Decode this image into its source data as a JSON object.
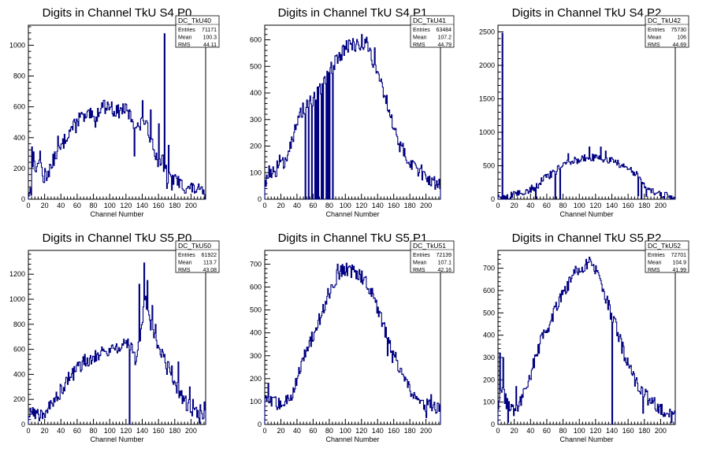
{
  "chart_data": [
    {
      "type": "histogram",
      "title": "Digits in Channel TkU S4 P0",
      "xlabel": "Channel Number",
      "xlim": [
        0,
        218
      ],
      "ylim": [
        0,
        1130
      ],
      "xticks": [
        0,
        20,
        40,
        60,
        80,
        100,
        120,
        140,
        160,
        180,
        200
      ],
      "yticks": [
        200,
        400,
        600,
        800,
        1000
      ],
      "stats": {
        "name": "DC_TkU40",
        "entries": "71171",
        "mean": "100.3",
        "rms": "44.11"
      },
      "anchors": [
        [
          0,
          40
        ],
        [
          4,
          60
        ],
        [
          6,
          280
        ],
        [
          10,
          180
        ],
        [
          14,
          290
        ],
        [
          18,
          130
        ],
        [
          22,
          150
        ],
        [
          28,
          220
        ],
        [
          34,
          290
        ],
        [
          40,
          330
        ],
        [
          46,
          400
        ],
        [
          52,
          460
        ],
        [
          58,
          470
        ],
        [
          64,
          540
        ],
        [
          70,
          520
        ],
        [
          76,
          550
        ],
        [
          82,
          500
        ],
        [
          88,
          600
        ],
        [
          94,
          600
        ],
        [
          100,
          610
        ],
        [
          106,
          570
        ],
        [
          112,
          570
        ],
        [
          118,
          590
        ],
        [
          124,
          550
        ],
        [
          130,
          500
        ],
        [
          136,
          460
        ],
        [
          142,
          520
        ],
        [
          148,
          430
        ],
        [
          154,
          360
        ],
        [
          158,
          250
        ],
        [
          162,
          250
        ],
        [
          166,
          250
        ],
        [
          172,
          130
        ],
        [
          178,
          130
        ],
        [
          184,
          110
        ],
        [
          190,
          90
        ],
        [
          196,
          70
        ],
        [
          202,
          70
        ],
        [
          208,
          60
        ],
        [
          214,
          40
        ],
        [
          218,
          30
        ]
      ],
      "spikes": [
        [
          4,
          340
        ],
        [
          20,
          200
        ],
        [
          28,
          200
        ],
        [
          36,
          410
        ],
        [
          50,
          450
        ],
        [
          56,
          520
        ],
        [
          62,
          560
        ],
        [
          92,
          640
        ],
        [
          130,
          280
        ],
        [
          140,
          640
        ],
        [
          150,
          580
        ],
        [
          160,
          490
        ],
        [
          166,
          180
        ],
        [
          167,
          1075
        ],
        [
          170,
          70
        ],
        [
          172,
          350
        ],
        [
          176,
          60
        ],
        [
          180,
          160
        ]
      ],
      "noise": 45
    },
    {
      "type": "histogram",
      "title": "Digits in Channel TkU S4 P1",
      "xlabel": "Channel Number",
      "xlim": [
        0,
        218
      ],
      "ylim": [
        0,
        655
      ],
      "xticks": [
        0,
        20,
        40,
        60,
        80,
        100,
        120,
        140,
        160,
        180,
        200
      ],
      "yticks": [
        100,
        200,
        300,
        400,
        500,
        600
      ],
      "stats": {
        "name": "DC_TkU41",
        "entries": "63484",
        "mean": "107.2",
        "rms": "44.79"
      },
      "anchors": [
        [
          0,
          60
        ],
        [
          6,
          110
        ],
        [
          12,
          90
        ],
        [
          18,
          140
        ],
        [
          24,
          130
        ],
        [
          30,
          200
        ],
        [
          36,
          240
        ],
        [
          42,
          300
        ],
        [
          48,
          340
        ],
        [
          54,
          360
        ],
        [
          60,
          370
        ],
        [
          66,
          400
        ],
        [
          72,
          420
        ],
        [
          78,
          460
        ],
        [
          84,
          500
        ],
        [
          90,
          530
        ],
        [
          96,
          550
        ],
        [
          102,
          580
        ],
        [
          108,
          580
        ],
        [
          114,
          580
        ],
        [
          120,
          590
        ],
        [
          126,
          580
        ],
        [
          132,
          540
        ],
        [
          138,
          500
        ],
        [
          144,
          440
        ],
        [
          150,
          380
        ],
        [
          156,
          320
        ],
        [
          162,
          250
        ],
        [
          168,
          200
        ],
        [
          174,
          170
        ],
        [
          180,
          140
        ],
        [
          186,
          120
        ],
        [
          192,
          110
        ],
        [
          198,
          90
        ],
        [
          204,
          80
        ],
        [
          210,
          60
        ],
        [
          218,
          50
        ]
      ],
      "spikes": [
        [
          50,
          0
        ],
        [
          54,
          0
        ],
        [
          58,
          0
        ],
        [
          62,
          0
        ],
        [
          64,
          0
        ],
        [
          66,
          0
        ],
        [
          70,
          0
        ],
        [
          72,
          0
        ],
        [
          76,
          0
        ],
        [
          78,
          0
        ],
        [
          80,
          0
        ],
        [
          84,
          0
        ],
        [
          104,
          600
        ],
        [
          120,
          620
        ],
        [
          126,
          610
        ],
        [
          136,
          570
        ]
      ],
      "noise": 28
    },
    {
      "type": "histogram",
      "title": "Digits in Channel TkU S4 P2",
      "xlabel": "Channel Number",
      "xlim": [
        0,
        218
      ],
      "ylim": [
        0,
        2600
      ],
      "xticks": [
        0,
        20,
        40,
        60,
        80,
        100,
        120,
        140,
        160,
        180,
        200
      ],
      "yticks": [
        500,
        1000,
        1500,
        2000,
        2500
      ],
      "stats": {
        "name": "DC_TkU42",
        "entries": "75730",
        "mean": "106",
        "rms": "44.69"
      },
      "anchors": [
        [
          0,
          10
        ],
        [
          6,
          30
        ],
        [
          12,
          40
        ],
        [
          18,
          60
        ],
        [
          24,
          80
        ],
        [
          30,
          100
        ],
        [
          36,
          130
        ],
        [
          42,
          160
        ],
        [
          48,
          200
        ],
        [
          54,
          280
        ],
        [
          60,
          330
        ],
        [
          66,
          380
        ],
        [
          72,
          430
        ],
        [
          78,
          480
        ],
        [
          84,
          520
        ],
        [
          90,
          560
        ],
        [
          96,
          580
        ],
        [
          102,
          600
        ],
        [
          108,
          620
        ],
        [
          114,
          620
        ],
        [
          120,
          620
        ],
        [
          126,
          610
        ],
        [
          132,
          600
        ],
        [
          138,
          580
        ],
        [
          144,
          550
        ],
        [
          150,
          520
        ],
        [
          156,
          480
        ],
        [
          162,
          440
        ],
        [
          168,
          400
        ],
        [
          174,
          300
        ],
        [
          180,
          200
        ],
        [
          186,
          140
        ],
        [
          192,
          100
        ],
        [
          198,
          70
        ],
        [
          204,
          60
        ],
        [
          210,
          50
        ],
        [
          218,
          30
        ]
      ],
      "spikes": [
        [
          5,
          2480
        ],
        [
          46,
          10
        ],
        [
          70,
          10
        ],
        [
          76,
          10
        ],
        [
          86,
          680
        ],
        [
          112,
          780
        ],
        [
          126,
          780
        ],
        [
          132,
          720
        ],
        [
          172,
          50
        ],
        [
          176,
          10
        ],
        [
          182,
          40
        ]
      ],
      "noise": 55
    },
    {
      "type": "histogram",
      "title": "Digits in Channel TkU S5 P0",
      "xlabel": "Channel Number",
      "xlim": [
        0,
        218
      ],
      "ylim": [
        0,
        1390
      ],
      "xticks": [
        0,
        20,
        40,
        60,
        80,
        100,
        120,
        140,
        160,
        180,
        200
      ],
      "yticks": [
        200,
        400,
        600,
        800,
        1000,
        1200
      ],
      "stats": {
        "name": "DC_TkU50",
        "entries": "61922",
        "mean": "113.7",
        "rms": "43.08"
      },
      "anchors": [
        [
          0,
          80
        ],
        [
          6,
          90
        ],
        [
          12,
          80
        ],
        [
          18,
          100
        ],
        [
          24,
          110
        ],
        [
          30,
          170
        ],
        [
          36,
          230
        ],
        [
          42,
          300
        ],
        [
          48,
          350
        ],
        [
          54,
          400
        ],
        [
          60,
          440
        ],
        [
          66,
          480
        ],
        [
          72,
          520
        ],
        [
          78,
          540
        ],
        [
          84,
          560
        ],
        [
          90,
          580
        ],
        [
          96,
          590
        ],
        [
          102,
          600
        ],
        [
          108,
          620
        ],
        [
          114,
          630
        ],
        [
          120,
          620
        ],
        [
          126,
          640
        ],
        [
          132,
          520
        ],
        [
          136,
          640
        ],
        [
          140,
          820
        ],
        [
          144,
          1000
        ],
        [
          148,
          850
        ],
        [
          152,
          780
        ],
        [
          156,
          700
        ],
        [
          160,
          620
        ],
        [
          164,
          560
        ],
        [
          168,
          500
        ],
        [
          172,
          460
        ],
        [
          176,
          420
        ],
        [
          180,
          360
        ],
        [
          184,
          280
        ],
        [
          188,
          220
        ],
        [
          192,
          180
        ],
        [
          196,
          150
        ],
        [
          200,
          130
        ],
        [
          206,
          110
        ],
        [
          212,
          100
        ],
        [
          218,
          100
        ]
      ],
      "spikes": [
        [
          2,
          130
        ],
        [
          124,
          0
        ],
        [
          136,
          1120
        ],
        [
          142,
          1290
        ],
        [
          146,
          1150
        ],
        [
          152,
          950
        ],
        [
          156,
          800
        ],
        [
          164,
          600
        ],
        [
          170,
          400
        ],
        [
          178,
          320
        ],
        [
          184,
          500
        ],
        [
          198,
          300
        ],
        [
          202,
          200
        ],
        [
          210,
          10
        ],
        [
          216,
          180
        ]
      ],
      "noise": 60
    },
    {
      "type": "histogram",
      "title": "Digits in Channel TkU S5 P1",
      "xlabel": "Channel Number",
      "xlim": [
        0,
        218
      ],
      "ylim": [
        0,
        760
      ],
      "xticks": [
        0,
        20,
        40,
        60,
        80,
        100,
        120,
        140,
        160,
        180,
        200
      ],
      "yticks": [
        100,
        200,
        300,
        400,
        500,
        600,
        700
      ],
      "stats": {
        "name": "DC_TkU51",
        "entries": "72139",
        "mean": "107.1",
        "rms": "42.16"
      },
      "anchors": [
        [
          0,
          100
        ],
        [
          8,
          100
        ],
        [
          16,
          90
        ],
        [
          24,
          90
        ],
        [
          30,
          110
        ],
        [
          36,
          150
        ],
        [
          42,
          230
        ],
        [
          48,
          290
        ],
        [
          54,
          340
        ],
        [
          60,
          390
        ],
        [
          66,
          440
        ],
        [
          72,
          500
        ],
        [
          78,
          560
        ],
        [
          84,
          610
        ],
        [
          90,
          650
        ],
        [
          96,
          670
        ],
        [
          102,
          680
        ],
        [
          108,
          670
        ],
        [
          114,
          660
        ],
        [
          120,
          650
        ],
        [
          126,
          620
        ],
        [
          132,
          580
        ],
        [
          138,
          530
        ],
        [
          144,
          470
        ],
        [
          150,
          400
        ],
        [
          156,
          340
        ],
        [
          162,
          290
        ],
        [
          168,
          230
        ],
        [
          174,
          190
        ],
        [
          180,
          150
        ],
        [
          186,
          120
        ],
        [
          192,
          100
        ],
        [
          198,
          90
        ],
        [
          204,
          80
        ],
        [
          210,
          70
        ],
        [
          218,
          70
        ]
      ],
      "spikes": [
        [
          4,
          180
        ],
        [
          90,
          700
        ],
        [
          98,
          690
        ],
        [
          104,
          690
        ],
        [
          114,
          670
        ],
        [
          152,
          300
        ],
        [
          158,
          270
        ],
        [
          200,
          30
        ],
        [
          206,
          130
        ]
      ],
      "noise": 30
    },
    {
      "type": "histogram",
      "title": "Digits in Channel TkU S5 P2",
      "xlabel": "Channel Number",
      "xlim": [
        0,
        218
      ],
      "ylim": [
        0,
        780
      ],
      "xticks": [
        0,
        20,
        40,
        60,
        80,
        100,
        120,
        140,
        160,
        180,
        200
      ],
      "yticks": [
        100,
        200,
        300,
        400,
        500,
        600,
        700
      ],
      "stats": {
        "name": "DC_TkU52",
        "entries": "72701",
        "mean": "104.9",
        "rms": "41.99"
      },
      "anchors": [
        [
          0,
          90
        ],
        [
          6,
          140
        ],
        [
          12,
          80
        ],
        [
          18,
          60
        ],
        [
          24,
          90
        ],
        [
          30,
          120
        ],
        [
          36,
          190
        ],
        [
          42,
          250
        ],
        [
          48,
          320
        ],
        [
          54,
          380
        ],
        [
          60,
          430
        ],
        [
          66,
          480
        ],
        [
          72,
          540
        ],
        [
          78,
          580
        ],
        [
          84,
          620
        ],
        [
          90,
          650
        ],
        [
          96,
          690
        ],
        [
          102,
          700
        ],
        [
          108,
          720
        ],
        [
          114,
          710
        ],
        [
          120,
          690
        ],
        [
          126,
          640
        ],
        [
          132,
          570
        ],
        [
          138,
          510
        ],
        [
          144,
          450
        ],
        [
          150,
          380
        ],
        [
          156,
          310
        ],
        [
          162,
          250
        ],
        [
          168,
          200
        ],
        [
          174,
          160
        ],
        [
          180,
          130
        ],
        [
          186,
          110
        ],
        [
          192,
          90
        ],
        [
          198,
          70
        ],
        [
          204,
          60
        ],
        [
          210,
          50
        ],
        [
          218,
          30
        ]
      ],
      "spikes": [
        [
          2,
          320
        ],
        [
          6,
          300
        ],
        [
          12,
          10
        ],
        [
          22,
          170
        ],
        [
          108,
          740
        ],
        [
          112,
          750
        ],
        [
          140,
          0
        ],
        [
          172,
          150
        ],
        [
          178,
          50
        ]
      ],
      "noise": 35
    }
  ]
}
